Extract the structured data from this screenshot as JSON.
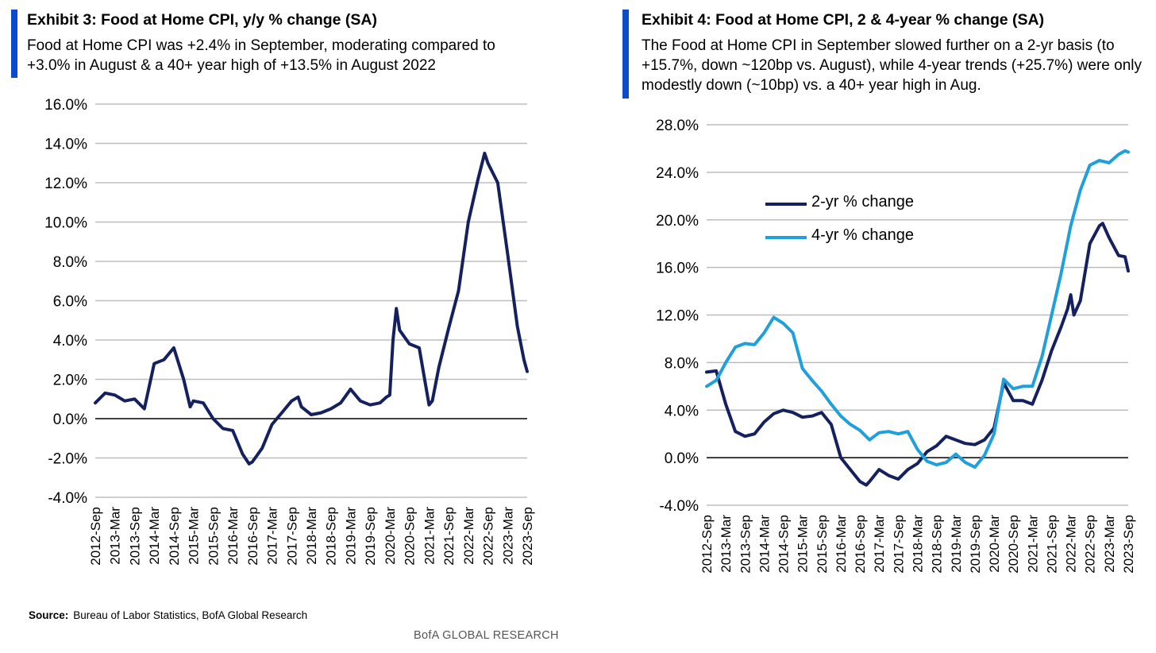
{
  "footer_brand": "BofA GLOBAL RESEARCH",
  "colors": {
    "accent_bar": "#0a4ccb",
    "navy": "#14215e",
    "light_blue": "#1fa0dc",
    "grid": "#bdbdbd"
  },
  "chart_data": [
    {
      "type": "line",
      "title": "Exhibit 3: Food at Home CPI, y/y % change (SA)",
      "subtitle": "Food at Home CPI was +2.4% in September, moderating compared to +3.0% in August & a 40+ year high of +13.5% in August 2022",
      "source_label": "Source:",
      "source_text": "Bureau of Labor Statistics, BofA Global Research",
      "x_range": [
        "2012-09",
        "2023-09"
      ],
      "x_tick_labels": [
        "2012-Sep",
        "2013-Mar",
        "2013-Sep",
        "2014-Mar",
        "2014-Sep",
        "2015-Mar",
        "2015-Sep",
        "2016-Mar",
        "2016-Sep",
        "2017-Mar",
        "2017-Sep",
        "2018-Mar",
        "2018-Sep",
        "2019-Mar",
        "2019-Sep",
        "2020-Mar",
        "2020-Sep",
        "2021-Mar",
        "2021-Sep",
        "2022-Mar",
        "2022-Sep",
        "2023-Mar",
        "2023-Sep"
      ],
      "ylim": [
        -4,
        16
      ],
      "y_ticks": [
        -4,
        -2,
        0,
        2,
        4,
        6,
        8,
        10,
        12,
        14,
        16
      ],
      "y_tick_labels": [
        "-4.0%",
        "-2.0%",
        "0.0%",
        "2.0%",
        "4.0%",
        "6.0%",
        "8.0%",
        "10.0%",
        "12.0%",
        "14.0%",
        "16.0%"
      ],
      "grid": true,
      "series": [
        {
          "color": "#14215e",
          "points": [
            [
              "2012-09",
              0.8
            ],
            [
              "2012-12",
              1.3
            ],
            [
              "2013-03",
              1.2
            ],
            [
              "2013-06",
              0.9
            ],
            [
              "2013-09",
              1.0
            ],
            [
              "2013-12",
              0.5
            ],
            [
              "2014-03",
              2.8
            ],
            [
              "2014-06",
              3.0
            ],
            [
              "2014-09",
              3.6
            ],
            [
              "2014-12",
              2.0
            ],
            [
              "2015-02",
              0.6
            ],
            [
              "2015-03",
              0.9
            ],
            [
              "2015-06",
              0.8
            ],
            [
              "2015-09",
              0.0
            ],
            [
              "2015-12",
              -0.5
            ],
            [
              "2016-03",
              -0.6
            ],
            [
              "2016-06",
              -1.8
            ],
            [
              "2016-08",
              -2.3
            ],
            [
              "2016-09",
              -2.2
            ],
            [
              "2016-12",
              -1.5
            ],
            [
              "2017-03",
              -0.3
            ],
            [
              "2017-06",
              0.3
            ],
            [
              "2017-09",
              0.9
            ],
            [
              "2017-11",
              1.1
            ],
            [
              "2017-12",
              0.6
            ],
            [
              "2018-03",
              0.2
            ],
            [
              "2018-06",
              0.3
            ],
            [
              "2018-09",
              0.5
            ],
            [
              "2018-12",
              0.8
            ],
            [
              "2019-03",
              1.5
            ],
            [
              "2019-06",
              0.9
            ],
            [
              "2019-09",
              0.7
            ],
            [
              "2019-12",
              0.8
            ],
            [
              "2020-02",
              1.1
            ],
            [
              "2020-03",
              1.2
            ],
            [
              "2020-04",
              4.0
            ],
            [
              "2020-05",
              5.6
            ],
            [
              "2020-06",
              4.5
            ],
            [
              "2020-09",
              3.8
            ],
            [
              "2020-12",
              3.6
            ],
            [
              "2021-03",
              0.7
            ],
            [
              "2021-04",
              0.9
            ],
            [
              "2021-06",
              2.6
            ],
            [
              "2021-09",
              4.6
            ],
            [
              "2021-12",
              6.5
            ],
            [
              "2022-03",
              10.0
            ],
            [
              "2022-06",
              12.2
            ],
            [
              "2022-08",
              13.5
            ],
            [
              "2022-09",
              13.0
            ],
            [
              "2022-12",
              12.0
            ],
            [
              "2023-03",
              8.4
            ],
            [
              "2023-06",
              4.7
            ],
            [
              "2023-08",
              3.0
            ],
            [
              "2023-09",
              2.4
            ]
          ]
        }
      ]
    },
    {
      "type": "line",
      "title": "Exhibit 4: Food at Home CPI, 2 & 4-year % change (SA)",
      "subtitle": "The Food at Home CPI in September slowed further on a 2-yr basis (to +15.7%, down ~120bp vs. August), while 4-year trends (+25.7%) were only modestly down (~10bp) vs. a 40+ year high in Aug.",
      "source_label": "Source:",
      "source_text": "Bureau of Labor Statistics, BofA Global Research",
      "x_range": [
        "2012-09",
        "2023-09"
      ],
      "x_tick_labels": [
        "2012-Sep",
        "2013-Mar",
        "2013-Sep",
        "2014-Mar",
        "2014-Sep",
        "2015-Mar",
        "2015-Sep",
        "2016-Mar",
        "2016-Sep",
        "2017-Mar",
        "2017-Sep",
        "2018-Mar",
        "2018-Sep",
        "2019-Mar",
        "2019-Sep",
        "2020-Mar",
        "2020-Sep",
        "2021-Mar",
        "2021-Sep",
        "2022-Mar",
        "2022-Sep",
        "2023-Mar",
        "2023-Sep"
      ],
      "ylim": [
        -4,
        28
      ],
      "y_ticks": [
        -4,
        0,
        4,
        8,
        12,
        16,
        20,
        24,
        28
      ],
      "y_tick_labels": [
        "-4.0%",
        "0.0%",
        "4.0%",
        "8.0%",
        "12.0%",
        "16.0%",
        "20.0%",
        "24.0%",
        "28.0%"
      ],
      "grid": true,
      "legend": "upper-left",
      "series": [
        {
          "name": "2-yr % change",
          "color": "#14215e",
          "points": [
            [
              "2012-09",
              7.2
            ],
            [
              "2012-12",
              7.3
            ],
            [
              "2013-03",
              4.5
            ],
            [
              "2013-06",
              2.2
            ],
            [
              "2013-09",
              1.8
            ],
            [
              "2013-12",
              2.0
            ],
            [
              "2014-03",
              3.0
            ],
            [
              "2014-06",
              3.7
            ],
            [
              "2014-09",
              4.0
            ],
            [
              "2014-12",
              3.8
            ],
            [
              "2015-03",
              3.4
            ],
            [
              "2015-06",
              3.5
            ],
            [
              "2015-09",
              3.8
            ],
            [
              "2015-12",
              2.8
            ],
            [
              "2016-03",
              0.0
            ],
            [
              "2016-06",
              -1.0
            ],
            [
              "2016-09",
              -2.0
            ],
            [
              "2016-11",
              -2.3
            ],
            [
              "2016-12",
              -2.0
            ],
            [
              "2017-03",
              -1.0
            ],
            [
              "2017-06",
              -1.5
            ],
            [
              "2017-09",
              -1.8
            ],
            [
              "2017-12",
              -1.0
            ],
            [
              "2018-03",
              -0.5
            ],
            [
              "2018-06",
              0.5
            ],
            [
              "2018-09",
              1.0
            ],
            [
              "2018-12",
              1.8
            ],
            [
              "2019-03",
              1.5
            ],
            [
              "2019-06",
              1.2
            ],
            [
              "2019-09",
              1.1
            ],
            [
              "2019-12",
              1.5
            ],
            [
              "2020-03",
              2.5
            ],
            [
              "2020-06",
              6.3
            ],
            [
              "2020-09",
              4.8
            ],
            [
              "2020-12",
              4.8
            ],
            [
              "2021-03",
              4.5
            ],
            [
              "2021-06",
              6.5
            ],
            [
              "2021-09",
              9.0
            ],
            [
              "2021-12",
              11.0
            ],
            [
              "2022-02",
              12.5
            ],
            [
              "2022-03",
              13.7
            ],
            [
              "2022-04",
              12.0
            ],
            [
              "2022-06",
              13.2
            ],
            [
              "2022-09",
              18.0
            ],
            [
              "2022-12",
              19.5
            ],
            [
              "2023-01",
              19.7
            ],
            [
              "2023-03",
              18.5
            ],
            [
              "2023-06",
              17.0
            ],
            [
              "2023-08",
              16.9
            ],
            [
              "2023-09",
              15.7
            ]
          ]
        },
        {
          "name": "4-yr % change",
          "color": "#1fa0dc",
          "points": [
            [
              "2012-09",
              6.0
            ],
            [
              "2012-12",
              6.5
            ],
            [
              "2013-03",
              8.0
            ],
            [
              "2013-06",
              9.3
            ],
            [
              "2013-09",
              9.6
            ],
            [
              "2013-12",
              9.5
            ],
            [
              "2014-03",
              10.5
            ],
            [
              "2014-06",
              11.8
            ],
            [
              "2014-09",
              11.3
            ],
            [
              "2014-12",
              10.5
            ],
            [
              "2015-03",
              7.5
            ],
            [
              "2015-06",
              6.5
            ],
            [
              "2015-09",
              5.6
            ],
            [
              "2015-12",
              4.5
            ],
            [
              "2016-03",
              3.5
            ],
            [
              "2016-06",
              2.8
            ],
            [
              "2016-09",
              2.3
            ],
            [
              "2016-12",
              1.5
            ],
            [
              "2017-03",
              2.1
            ],
            [
              "2017-06",
              2.2
            ],
            [
              "2017-09",
              2.0
            ],
            [
              "2017-12",
              2.2
            ],
            [
              "2018-03",
              0.7
            ],
            [
              "2018-06",
              -0.3
            ],
            [
              "2018-09",
              -0.6
            ],
            [
              "2018-12",
              -0.4
            ],
            [
              "2019-03",
              0.3
            ],
            [
              "2019-06",
              -0.4
            ],
            [
              "2019-09",
              -0.8
            ],
            [
              "2019-12",
              0.2
            ],
            [
              "2020-03",
              2.0
            ],
            [
              "2020-06",
              6.6
            ],
            [
              "2020-09",
              5.8
            ],
            [
              "2020-12",
              6.0
            ],
            [
              "2021-03",
              6.0
            ],
            [
              "2021-06",
              8.5
            ],
            [
              "2021-09",
              12.0
            ],
            [
              "2021-12",
              15.5
            ],
            [
              "2022-03",
              19.5
            ],
            [
              "2022-06",
              22.5
            ],
            [
              "2022-09",
              24.6
            ],
            [
              "2022-12",
              25.0
            ],
            [
              "2023-03",
              24.8
            ],
            [
              "2023-06",
              25.5
            ],
            [
              "2023-08",
              25.8
            ],
            [
              "2023-09",
              25.7
            ]
          ]
        }
      ]
    }
  ]
}
